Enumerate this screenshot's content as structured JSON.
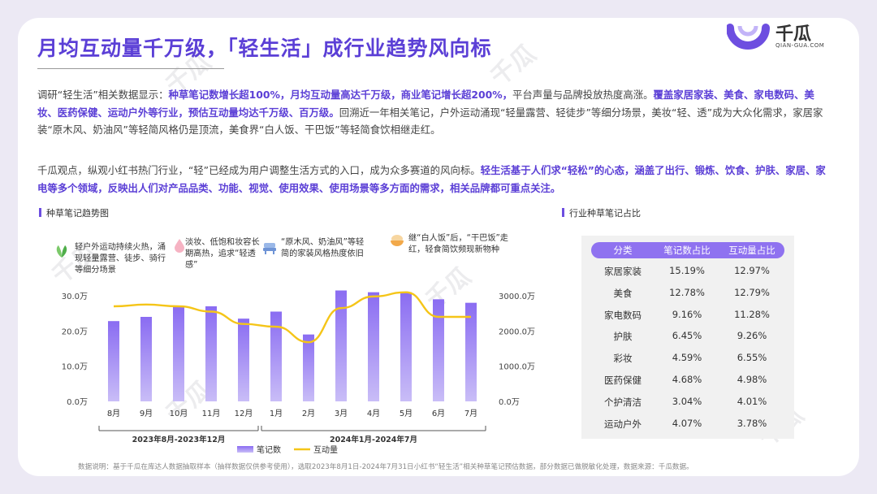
{
  "header": {
    "title": "月均互动量千万级，「轻生活」成行业趋势风向标",
    "logo_text": "千瓜",
    "logo_sub": "QIAN-GUA.COM"
  },
  "paragraphs": {
    "p1": [
      {
        "t": "调研“轻生活”相关数据显示：",
        "hl": false
      },
      {
        "t": "种草笔记数增长超100%，月均互动量高达千万级，商业笔记增长超200%，",
        "hl": true
      },
      {
        "t": "平台声量与品牌投放热度高涨。",
        "hl": false
      },
      {
        "t": "覆盖家居家装、美食、家电数码、美妆、医药保健、运动户外等行业，预估互动量均达千万级、百万级。",
        "hl": true
      },
      {
        "t": "回溯近一年相关笔记，户外运动涌现“轻量露营、轻徒步”等细分场景，美妆“轻、透”成为大众化需求，家居家装“原木风、奶油风”等轻简风格仍是顶流，美食界“白人饭、干巴饭”等轻简食饮相继走红。",
        "hl": false
      }
    ],
    "p2": [
      {
        "t": "千瓜观点，纵观小红书热门行业，“轻”已经成为用户调整生活方式的入口，成为众多赛道的风向标。",
        "hl": false
      },
      {
        "t": "轻生活基于人们求“轻松”的心态，涵盖了出行、锻炼、饮食、护肤、家居、家电等多个领域，反映出人们对产品品类、功能、视觉、使用效果、使用场景等多方面的需求，相关品牌都可重点关注。",
        "hl": true
      }
    ]
  },
  "sections": {
    "left": "种草笔记趋势图",
    "right": "行业种草笔记占比"
  },
  "annotations": [
    "轻户外运动持续火热，涌现轻量露营、徒步、骑行等细分场景",
    "淡妆、低饱和妆容长期高热，追求“轻透感”",
    "“原木风、奶油风”等轻简的家装风格热度依旧",
    "继“白人饭”后，“干巴饭”走红，轻食简饮频现新物种"
  ],
  "chart_data": {
    "type": "bar",
    "categories": [
      "8月",
      "9月",
      "10月",
      "11月",
      "12月",
      "1月",
      "2月",
      "3月",
      "4月",
      "5月",
      "6月",
      "7月"
    ],
    "series": [
      {
        "name": "笔记数",
        "type": "bar",
        "axis": "left",
        "values": [
          22.8,
          24.0,
          27.0,
          27.0,
          23.5,
          25.5,
          19.0,
          31.5,
          31.0,
          31.0,
          29.0,
          28.0
        ]
      },
      {
        "name": "互动量",
        "type": "line",
        "axis": "right",
        "values": [
          2700,
          2750,
          2700,
          2550,
          2200,
          2120,
          1680,
          2650,
          2980,
          3100,
          2400,
          2400
        ]
      }
    ],
    "y_left": {
      "ticks": [
        "0.0万",
        "10.0万",
        "20.0万",
        "30.0万"
      ],
      "lim": [
        0,
        30
      ]
    },
    "y_right": {
      "ticks": [
        "0.0万",
        "1000.0万",
        "2000.0万",
        "3000.0万"
      ],
      "lim": [
        0,
        3000
      ]
    },
    "groups": [
      {
        "label": "2023年8月-2023年12月",
        "from": 0,
        "to": 4
      },
      {
        "label": "2024年1月-2024年7月",
        "from": 5,
        "to": 11
      }
    ],
    "legend": [
      "笔记数",
      "互动量"
    ],
    "legend_position": "bottom",
    "colors": {
      "bar_top": "#8a6cf2",
      "bar_bottom": "#c9bdf7",
      "line": "#f5c518"
    }
  },
  "table": {
    "headers": [
      "分类",
      "笔记数占比",
      "互动量占比"
    ],
    "rows": [
      [
        "家居家装",
        "15.19%",
        "12.97%"
      ],
      [
        "美食",
        "12.78%",
        "12.79%"
      ],
      [
        "家电数码",
        "9.16%",
        "11.28%"
      ],
      [
        "护肤",
        "6.45%",
        "9.26%"
      ],
      [
        "彩妆",
        "4.59%",
        "6.55%"
      ],
      [
        "医药保健",
        "4.68%",
        "4.98%"
      ],
      [
        "个护清洁",
        "3.04%",
        "4.01%"
      ],
      [
        "运动户外",
        "4.07%",
        "3.78%"
      ]
    ]
  },
  "footnote": "数据说明：基于千瓜在库达人数据抽取样本（抽样数据仅供参考使用），选取2023年8月1日-2024年7月31日小红书“轻生活”相关种草笔记预估数据，部分数据已做脱敏化处理，数据来源：千瓜数据。",
  "watermark": "千瓜"
}
